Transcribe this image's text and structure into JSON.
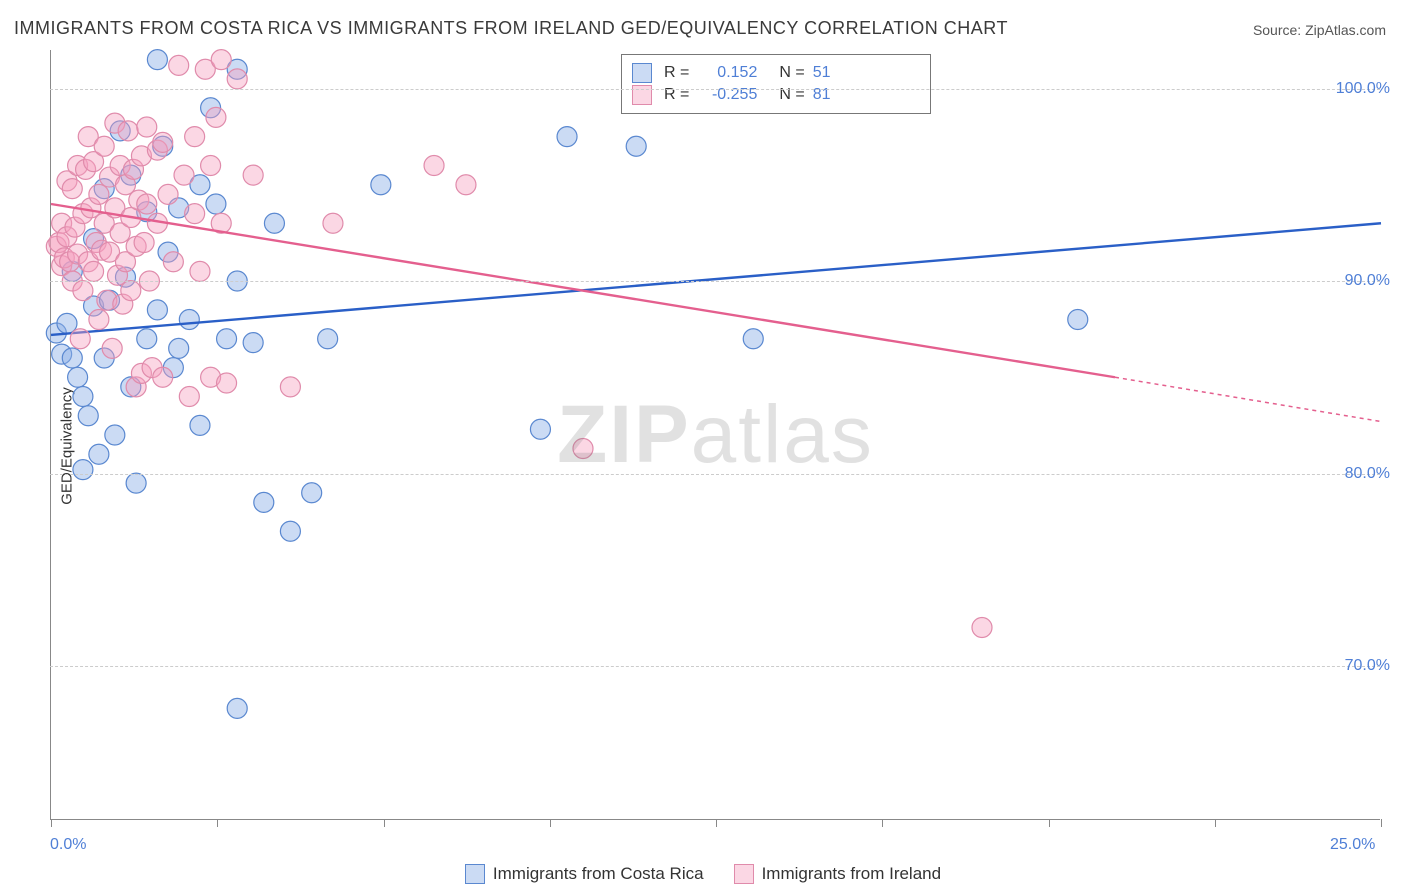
{
  "title": "IMMIGRANTS FROM COSTA RICA VS IMMIGRANTS FROM IRELAND GED/EQUIVALENCY CORRELATION CHART",
  "source": "Source: ZipAtlas.com",
  "watermark": "ZIPatlas",
  "ylabel": "GED/Equivalency",
  "chart": {
    "type": "scatter",
    "xlim": [
      0,
      25
    ],
    "ylim": [
      62,
      102
    ],
    "x_ticks": [
      0,
      3.125,
      6.25,
      9.375,
      12.5,
      15.625,
      18.75,
      21.875,
      25
    ],
    "x_tick_labels": {
      "0": "0.0%",
      "25": "25.0%"
    },
    "y_gridlines": [
      70,
      80,
      90,
      100
    ],
    "y_tick_labels": [
      "70.0%",
      "80.0%",
      "90.0%",
      "100.0%"
    ],
    "background_color": "#ffffff",
    "grid_color": "#cccccc",
    "axis_color": "#888888",
    "marker_radius": 10,
    "marker_stroke_width": 1.2,
    "line_width": 2.4,
    "series": [
      {
        "name": "Immigrants from Costa Rica",
        "color_fill": "rgba(140,175,230,0.45)",
        "color_stroke": "#5a88d0",
        "line_color": "#2a5fc7",
        "r": 0.152,
        "n": 51,
        "trend": {
          "x0": 0,
          "y0": 87.2,
          "x1": 25,
          "y1": 93.0
        },
        "points": [
          [
            0.1,
            87.3
          ],
          [
            0.2,
            86.2
          ],
          [
            0.3,
            87.8
          ],
          [
            0.4,
            86.0
          ],
          [
            0.4,
            90.5
          ],
          [
            0.5,
            85.0
          ],
          [
            0.6,
            84.0
          ],
          [
            0.6,
            80.2
          ],
          [
            0.7,
            83.0
          ],
          [
            0.8,
            88.7
          ],
          [
            0.8,
            92.2
          ],
          [
            0.9,
            81.0
          ],
          [
            1.0,
            86.0
          ],
          [
            1.0,
            94.8
          ],
          [
            1.1,
            89.0
          ],
          [
            1.2,
            82.0
          ],
          [
            1.3,
            97.8
          ],
          [
            1.4,
            90.2
          ],
          [
            1.5,
            84.5
          ],
          [
            1.5,
            95.5
          ],
          [
            1.6,
            79.5
          ],
          [
            1.8,
            87.0
          ],
          [
            1.8,
            93.6
          ],
          [
            2.0,
            88.5
          ],
          [
            2.0,
            101.5
          ],
          [
            2.1,
            97.0
          ],
          [
            2.2,
            91.5
          ],
          [
            2.3,
            85.5
          ],
          [
            2.4,
            86.5
          ],
          [
            2.4,
            93.8
          ],
          [
            2.6,
            88.0
          ],
          [
            2.8,
            82.5
          ],
          [
            2.8,
            95.0
          ],
          [
            3.0,
            99.0
          ],
          [
            3.1,
            94.0
          ],
          [
            3.3,
            87.0
          ],
          [
            3.5,
            90.0
          ],
          [
            3.5,
            101.0
          ],
          [
            3.8,
            86.8
          ],
          [
            4.0,
            78.5
          ],
          [
            4.2,
            93.0
          ],
          [
            4.5,
            77.0
          ],
          [
            4.9,
            79.0
          ],
          [
            5.2,
            87.0
          ],
          [
            6.2,
            95.0
          ],
          [
            3.5,
            67.8
          ],
          [
            9.2,
            82.3
          ],
          [
            9.7,
            97.5
          ],
          [
            11.0,
            97.0
          ],
          [
            13.2,
            87.0
          ],
          [
            19.3,
            88.0
          ]
        ]
      },
      {
        "name": "Immigrants from Ireland",
        "color_fill": "rgba(245,160,190,0.42)",
        "color_stroke": "#e08bab",
        "line_color": "#e45f8e",
        "r": -0.255,
        "n": 81,
        "trend": {
          "x0": 0,
          "y0": 94.0,
          "x1": 20,
          "y1": 85.0
        },
        "trend_dashed": {
          "x0": 20,
          "y0": 85.0,
          "x1": 25,
          "y1": 82.7
        },
        "points": [
          [
            0.1,
            91.8
          ],
          [
            0.15,
            92.0
          ],
          [
            0.2,
            90.8
          ],
          [
            0.2,
            93.0
          ],
          [
            0.25,
            91.2
          ],
          [
            0.3,
            95.2
          ],
          [
            0.3,
            92.3
          ],
          [
            0.35,
            91.0
          ],
          [
            0.4,
            94.8
          ],
          [
            0.4,
            90.0
          ],
          [
            0.45,
            92.8
          ],
          [
            0.5,
            96.0
          ],
          [
            0.5,
            91.4
          ],
          [
            0.55,
            87.0
          ],
          [
            0.6,
            93.5
          ],
          [
            0.6,
            89.5
          ],
          [
            0.65,
            95.8
          ],
          [
            0.7,
            91.0
          ],
          [
            0.7,
            97.5
          ],
          [
            0.75,
            93.8
          ],
          [
            0.8,
            90.5
          ],
          [
            0.8,
            96.2
          ],
          [
            0.85,
            92.0
          ],
          [
            0.9,
            94.5
          ],
          [
            0.9,
            88.0
          ],
          [
            0.95,
            91.6
          ],
          [
            1.0,
            97.0
          ],
          [
            1.0,
            93.0
          ],
          [
            1.05,
            89.0
          ],
          [
            1.1,
            95.4
          ],
          [
            1.1,
            91.5
          ],
          [
            1.15,
            86.5
          ],
          [
            1.2,
            98.2
          ],
          [
            1.2,
            93.8
          ],
          [
            1.25,
            90.3
          ],
          [
            1.3,
            96.0
          ],
          [
            1.3,
            92.5
          ],
          [
            1.35,
            88.8
          ],
          [
            1.4,
            95.0
          ],
          [
            1.4,
            91.0
          ],
          [
            1.45,
            97.8
          ],
          [
            1.5,
            93.3
          ],
          [
            1.5,
            89.5
          ],
          [
            1.55,
            95.8
          ],
          [
            1.6,
            84.5
          ],
          [
            1.6,
            91.8
          ],
          [
            1.65,
            94.2
          ],
          [
            1.7,
            85.2
          ],
          [
            1.7,
            96.5
          ],
          [
            1.75,
            92.0
          ],
          [
            1.8,
            98.0
          ],
          [
            1.8,
            94.0
          ],
          [
            1.85,
            90.0
          ],
          [
            1.9,
            85.5
          ],
          [
            2.0,
            96.8
          ],
          [
            2.0,
            93.0
          ],
          [
            2.1,
            85.0
          ],
          [
            2.1,
            97.2
          ],
          [
            2.2,
            94.5
          ],
          [
            2.3,
            91.0
          ],
          [
            2.4,
            101.2
          ],
          [
            2.5,
            95.5
          ],
          [
            2.6,
            84.0
          ],
          [
            2.7,
            97.5
          ],
          [
            2.7,
            93.5
          ],
          [
            2.8,
            90.5
          ],
          [
            2.9,
            101.0
          ],
          [
            3.0,
            96.0
          ],
          [
            3.0,
            85.0
          ],
          [
            3.1,
            98.5
          ],
          [
            3.2,
            93.0
          ],
          [
            3.3,
            84.7
          ],
          [
            3.5,
            100.5
          ],
          [
            3.8,
            95.5
          ],
          [
            4.5,
            84.5
          ],
          [
            5.3,
            93.0
          ],
          [
            7.2,
            96.0
          ],
          [
            7.8,
            95.0
          ],
          [
            10.0,
            81.3
          ],
          [
            17.5,
            72.0
          ],
          [
            3.2,
            101.5
          ]
        ]
      }
    ]
  },
  "bottom_legend": [
    {
      "label": "Immigrants from Costa Rica",
      "fill": "rgba(140,175,230,0.45)",
      "stroke": "#5a88d0"
    },
    {
      "label": "Immigrants from Ireland",
      "fill": "rgba(245,160,190,0.42)",
      "stroke": "#e08bab"
    }
  ]
}
